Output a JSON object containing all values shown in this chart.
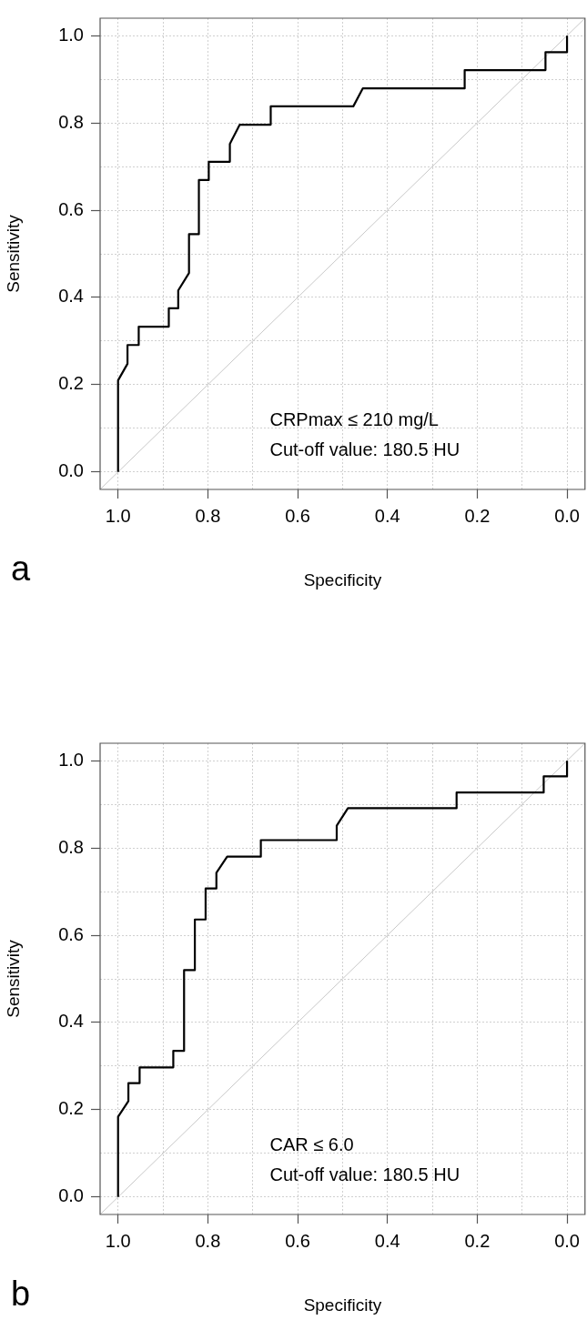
{
  "chart_data": [
    {
      "type": "line",
      "title": "a",
      "xlabel": "Specificity",
      "ylabel": "Sensitivity",
      "annotations": [
        "CRPmax ≤ 210 mg/L",
        "Cut-off value: 180.5 HU"
      ],
      "series": [
        {
          "color": "#000000",
          "x": [
            1,
            1,
            0.979,
            0.979,
            0.954,
            0.954,
            0.887,
            0.887,
            0.866,
            0.866,
            0.842,
            0.842,
            0.82,
            0.82,
            0.798,
            0.798,
            0.751,
            0.751,
            0.729,
            0.66,
            0.66,
            0.476,
            0.455,
            0.228,
            0.228,
            0.048,
            0.048,
            0,
            0
          ],
          "values": [
            0,
            0.21,
            0.248,
            0.291,
            0.291,
            0.333,
            0.333,
            0.375,
            0.375,
            0.416,
            0.456,
            0.545,
            0.545,
            0.669,
            0.669,
            0.711,
            0.711,
            0.752,
            0.796,
            0.796,
            0.838,
            0.838,
            0.879,
            0.879,
            0.921,
            0.921,
            0.962,
            0.962,
            1
          ]
        },
        {
          "type": "line",
          "color": "#c8c8c8",
          "x": [
            1.04,
            -0.04
          ],
          "values": [
            -0.04,
            1.04
          ]
        }
      ],
      "xlim": [
        1.04,
        -0.04
      ],
      "ylim": [
        -0.04,
        1.04
      ],
      "xticks": [
        {
          "value": 1,
          "label": "1.0"
        },
        {
          "value": 0.9,
          "label": null
        },
        {
          "value": 0.8,
          "label": "0.8"
        },
        {
          "value": 0.7,
          "label": null
        },
        {
          "value": 0.6,
          "label": "0.6"
        },
        {
          "value": 0.5,
          "label": null
        },
        {
          "value": 0.4,
          "label": "0.4"
        },
        {
          "value": 0.3,
          "label": null
        },
        {
          "value": 0.2,
          "label": "0.2"
        },
        {
          "value": 0.1,
          "label": null
        },
        {
          "value": 0,
          "label": "0.0"
        }
      ],
      "yticks": [
        {
          "value": 0,
          "label": "0.0"
        },
        {
          "value": 0.1,
          "label": null
        },
        {
          "value": 0.2,
          "label": "0.2"
        },
        {
          "value": 0.3,
          "label": null
        },
        {
          "value": 0.4,
          "label": "0.4"
        },
        {
          "value": 0.5,
          "label": null
        },
        {
          "value": 0.6,
          "label": "0.6"
        },
        {
          "value": 0.7,
          "label": null
        },
        {
          "value": 0.8,
          "label": "0.8"
        },
        {
          "value": 0.9,
          "label": null
        },
        {
          "value": 1,
          "label": "1.0"
        }
      ],
      "grid": true,
      "marker": "none",
      "line_style": "solid"
    },
    {
      "type": "line",
      "title": "b",
      "xlabel": "Specificity",
      "ylabel": "Sensitivity",
      "annotations": [
        "CAR ≤ 6.0",
        "Cut-off value: 180.5 HU"
      ],
      "series": [
        {
          "color": "#000000",
          "x": [
            1,
            1,
            0.977,
            0.977,
            0.952,
            0.952,
            0.877,
            0.877,
            0.853,
            0.853,
            0.829,
            0.829,
            0.805,
            0.805,
            0.781,
            0.781,
            0.757,
            0.682,
            0.682,
            0.513,
            0.513,
            0.488,
            0.246,
            0.246,
            0.052,
            0.052,
            0,
            0
          ],
          "values": [
            0,
            0.184,
            0.22,
            0.261,
            0.261,
            0.297,
            0.297,
            0.335,
            0.335,
            0.52,
            0.52,
            0.636,
            0.636,
            0.707,
            0.707,
            0.743,
            0.78,
            0.78,
            0.818,
            0.818,
            0.851,
            0.891,
            0.891,
            0.927,
            0.927,
            0.964,
            0.964,
            1
          ]
        },
        {
          "type": "line",
          "color": "#c8c8c8",
          "x": [
            1.04,
            -0.04
          ],
          "values": [
            -0.04,
            1.04
          ]
        }
      ],
      "xlim": [
        1.04,
        -0.04
      ],
      "ylim": [
        -0.04,
        1.04
      ],
      "xticks": [
        {
          "value": 1,
          "label": "1.0"
        },
        {
          "value": 0.9,
          "label": null
        },
        {
          "value": 0.8,
          "label": "0.8"
        },
        {
          "value": 0.7,
          "label": null
        },
        {
          "value": 0.6,
          "label": "0.6"
        },
        {
          "value": 0.5,
          "label": null
        },
        {
          "value": 0.4,
          "label": "0.4"
        },
        {
          "value": 0.3,
          "label": null
        },
        {
          "value": 0.2,
          "label": "0.2"
        },
        {
          "value": 0.1,
          "label": null
        },
        {
          "value": 0,
          "label": "0.0"
        }
      ],
      "yticks": [
        {
          "value": 0,
          "label": "0.0"
        },
        {
          "value": 0.1,
          "label": null
        },
        {
          "value": 0.2,
          "label": "0.2"
        },
        {
          "value": 0.3,
          "label": null
        },
        {
          "value": 0.4,
          "label": "0.4"
        },
        {
          "value": 0.5,
          "label": null
        },
        {
          "value": 0.6,
          "label": "0.6"
        },
        {
          "value": 0.7,
          "label": null
        },
        {
          "value": 0.8,
          "label": "0.8"
        },
        {
          "value": 0.9,
          "label": null
        },
        {
          "value": 1,
          "label": "1.0"
        }
      ],
      "grid": true,
      "marker": "none",
      "line_style": "solid"
    }
  ]
}
